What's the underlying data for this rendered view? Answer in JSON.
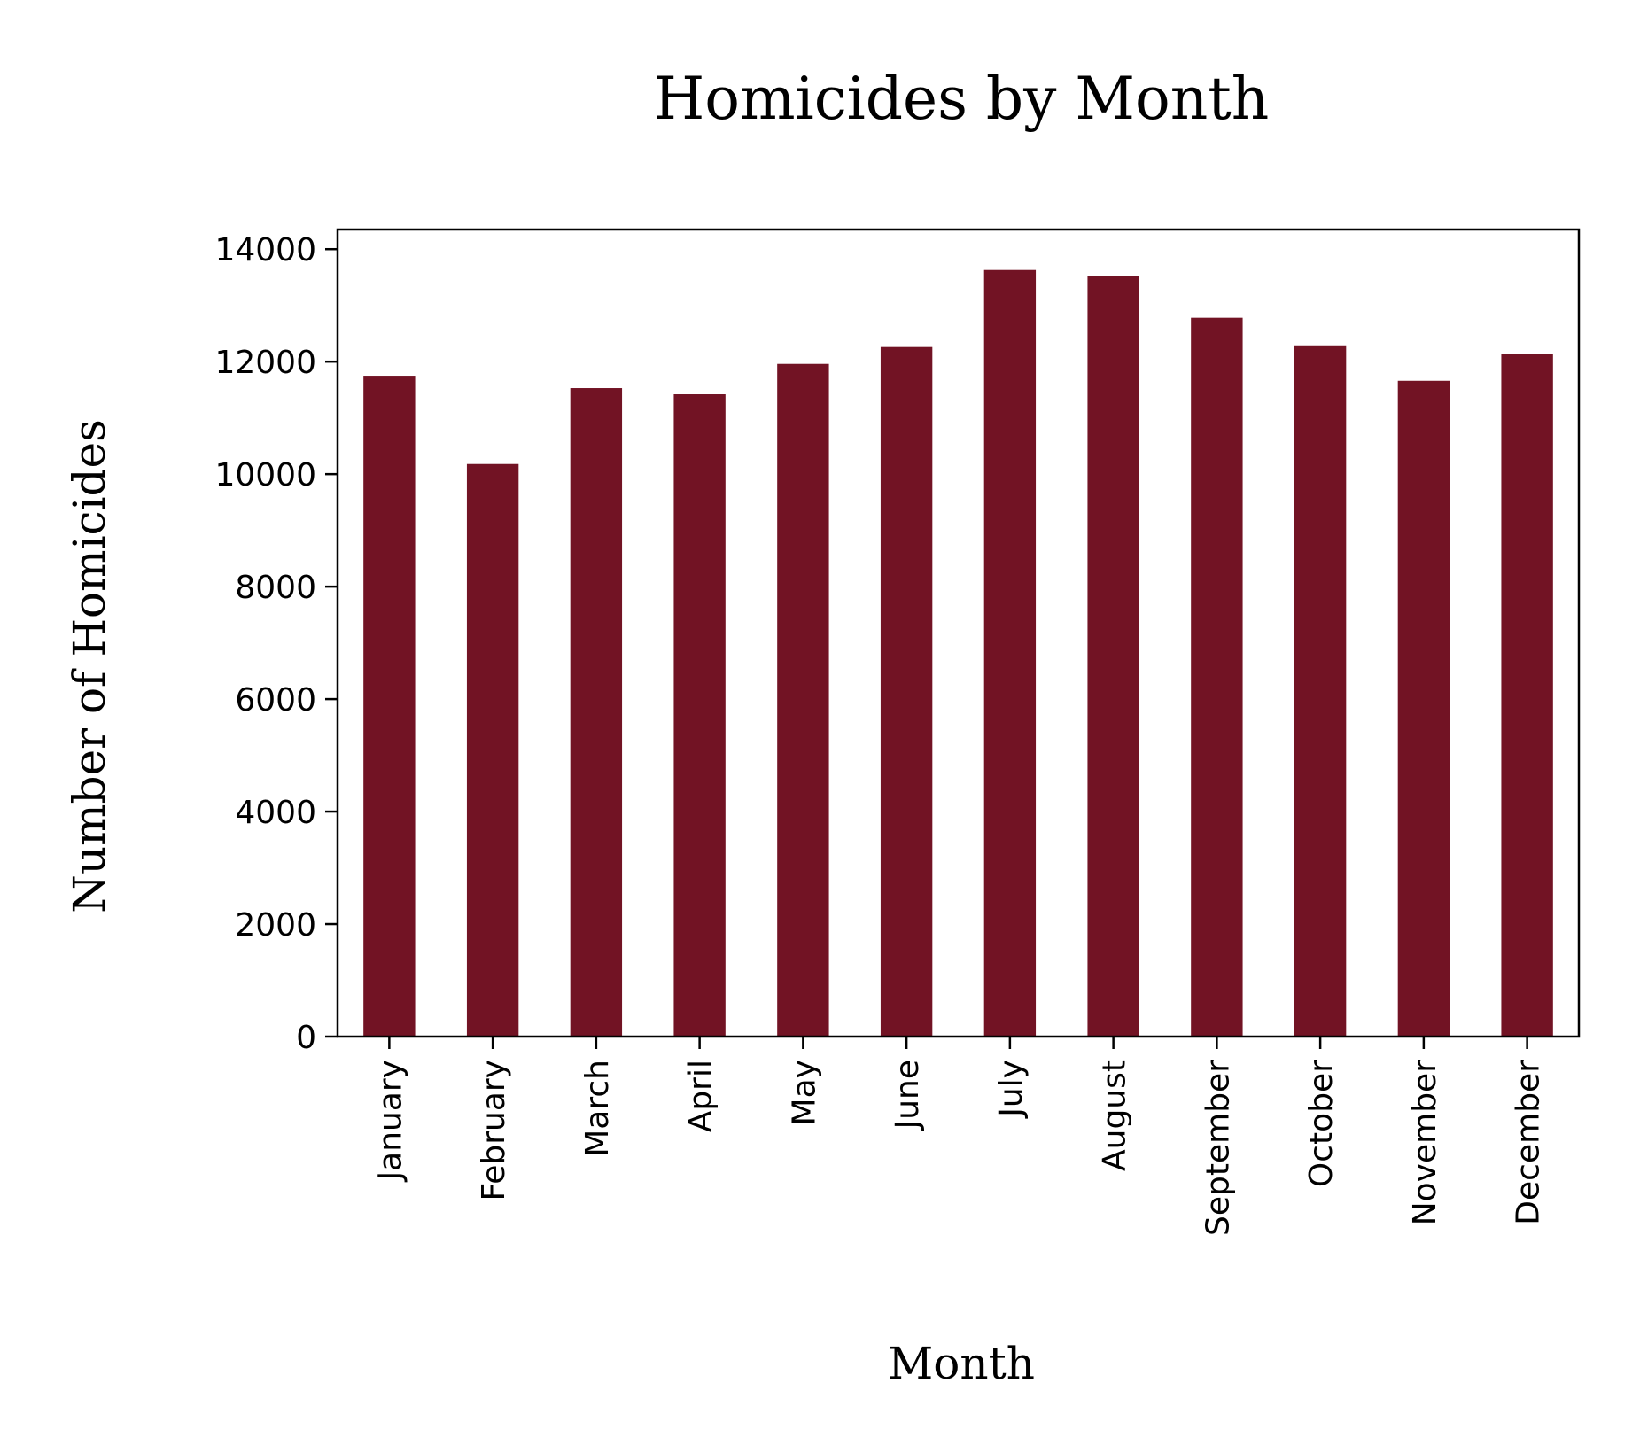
{
  "chart_data": {
    "type": "bar",
    "title": "Homicides by Month",
    "xlabel": "Month",
    "ylabel": "Number of Homicides",
    "categories": [
      "January",
      "February",
      "March",
      "April",
      "May",
      "June",
      "July",
      "August",
      "September",
      "October",
      "November",
      "December"
    ],
    "values": [
      11750,
      10180,
      11530,
      11420,
      11960,
      12260,
      13630,
      13530,
      12780,
      12290,
      11660,
      12130
    ],
    "ylim": [
      0,
      14350
    ],
    "yticks": [
      0,
      2000,
      4000,
      6000,
      8000,
      10000,
      12000,
      14000
    ],
    "ytick_labels": [
      "0",
      "2000",
      "4000",
      "6000",
      "8000",
      "10000",
      "12000",
      "14000"
    ],
    "bar_color": "#721324",
    "grid": false,
    "legend": "none"
  }
}
